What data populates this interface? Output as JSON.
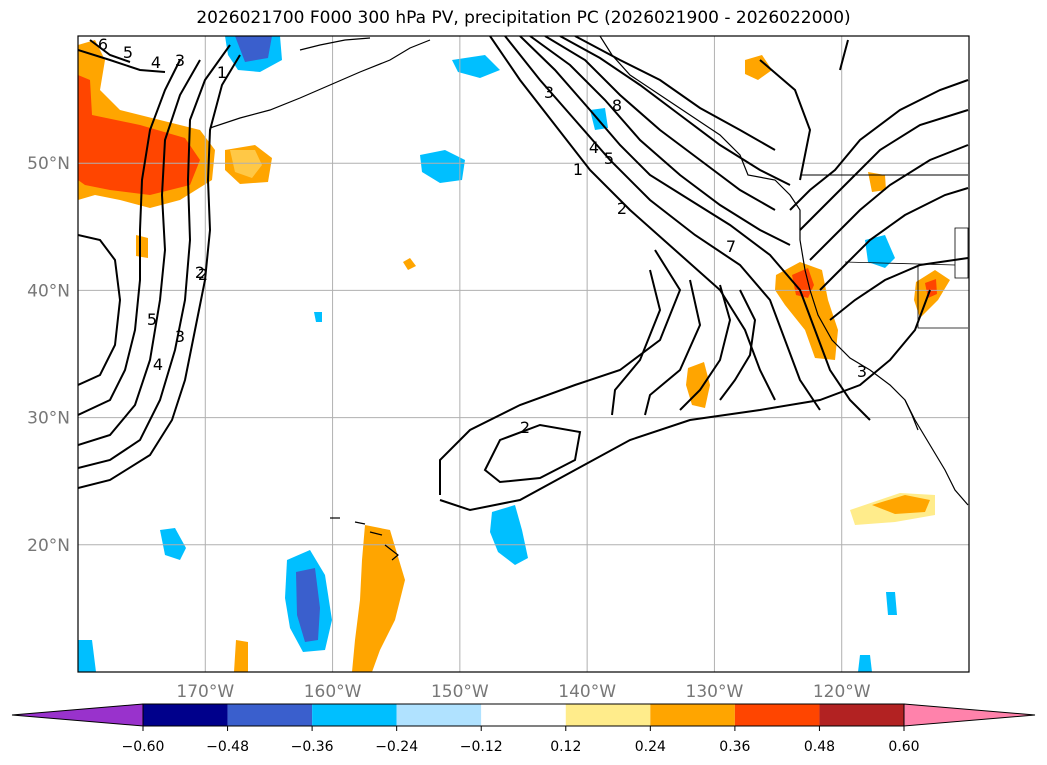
{
  "title": "2026021700 F000 300 hPa PV, precipitation PC (2026021900 - 2026022000)",
  "map": {
    "lon_labels": [
      "170°W",
      "160°W",
      "150°W",
      "140°W",
      "130°W",
      "120°W"
    ],
    "lat_labels": [
      "50°N",
      "40°N",
      "30°N",
      "20°N"
    ],
    "lon_values": [
      -170,
      -160,
      -150,
      -140,
      -130,
      -120
    ],
    "lat_values": [
      50,
      40,
      30,
      20
    ],
    "extent": {
      "lon_min": -180,
      "lon_max": -110,
      "lat_min": 10,
      "lat_max": 60
    },
    "contour_labels": [
      "6",
      "5",
      "4",
      "3",
      "1",
      "2",
      "5",
      "4",
      "3",
      "2",
      "3",
      "8",
      "4",
      "5",
      "1",
      "2",
      "7",
      "2",
      "3"
    ]
  },
  "colorbar": {
    "ticks": [
      "−0.60",
      "−0.48",
      "−0.36",
      "−0.24",
      "−0.12",
      "0.12",
      "0.24",
      "0.36",
      "0.48",
      "0.60"
    ],
    "colors": [
      "#9932cc",
      "#00008b",
      "#3a5fcd",
      "#00bfff",
      "#b0e2ff",
      "#ffffff",
      "#ffec8b",
      "#ffa500",
      "#ff4500",
      "#b22222",
      "#ff82ab"
    ]
  }
}
